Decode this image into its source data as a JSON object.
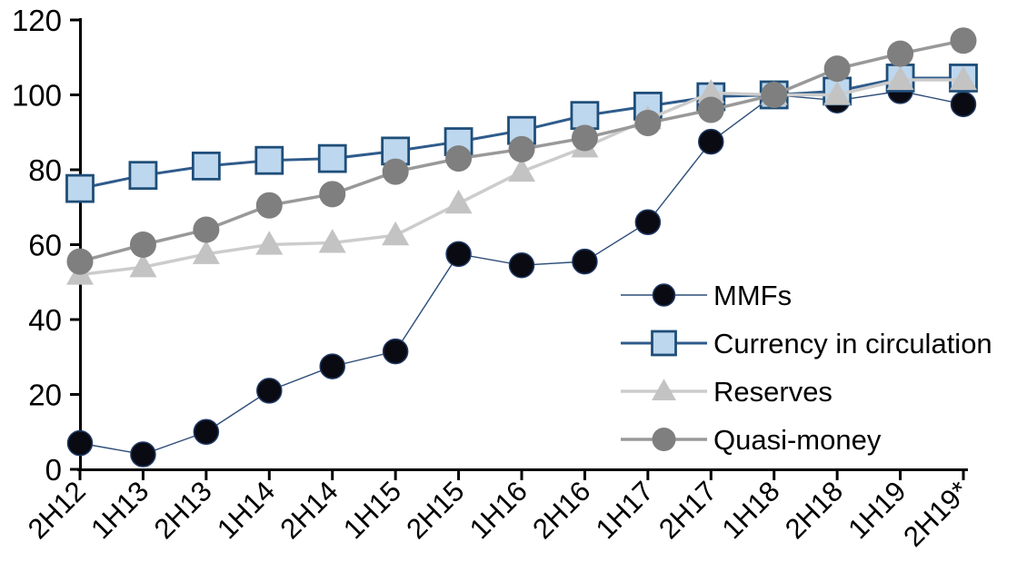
{
  "chart_data": {
    "type": "line",
    "title": "",
    "xlabel": "",
    "ylabel": "",
    "categories": [
      "2H12",
      "1H13",
      "2H13",
      "1H14",
      "2H14",
      "1H15",
      "2H15",
      "1H16",
      "2H16",
      "1H17",
      "2H17",
      "1H18",
      "2H18",
      "1H19",
      "2H19*"
    ],
    "series": [
      {
        "name": "MMFs",
        "marker": "circle",
        "marker_size": 27,
        "marker_color": "#0a0a12",
        "marker_edge": "#1f3864",
        "marker_edge_width": 1.5,
        "line_color": "#2e4e79",
        "line_width": 1.4,
        "values": [
          7,
          4,
          10,
          21,
          27.5,
          31.5,
          57.5,
          54.5,
          55.5,
          66,
          87.5,
          100,
          98.5,
          101,
          97.5
        ]
      },
      {
        "name": "Currency in circulation",
        "marker": "square",
        "marker_size": 29,
        "marker_color": "#bdd7ee",
        "marker_edge": "#1f4e79",
        "marker_edge_width": 2.8,
        "line_color": "#2f5b8b",
        "line_width": 3,
        "values": [
          75,
          78.5,
          81,
          82.5,
          83,
          85,
          87.5,
          90.5,
          94.5,
          97,
          99.5,
          100,
          101,
          104.5,
          104.5
        ]
      },
      {
        "name": "Reserves",
        "marker": "triangle",
        "marker_size": 30,
        "marker_color": "#c3c3c3",
        "marker_edge": "none",
        "marker_edge_width": 0,
        "line_color": "#cccccc",
        "line_width": 3.5,
        "values": [
          52,
          54,
          57.5,
          60,
          60.5,
          62.5,
          71,
          79.5,
          86,
          93.5,
          100.5,
          100,
          100,
          104,
          104
        ]
      },
      {
        "name": "Quasi-money",
        "marker": "circle",
        "marker_size": 29,
        "marker_color": "#7f7f7f",
        "marker_edge": "none",
        "marker_edge_width": 0,
        "line_color": "#999999",
        "line_width": 3.5,
        "values": [
          55.5,
          60,
          64,
          70.5,
          73.5,
          79.5,
          83,
          85.5,
          88.5,
          92.5,
          96,
          100,
          107,
          111,
          114.5
        ]
      }
    ],
    "ylim": [
      0,
      120
    ],
    "yticks": [
      0,
      20,
      40,
      60,
      80,
      100,
      120
    ],
    "grid": false,
    "legend_position": "inside-right",
    "legend_labels": [
      "MMFs",
      "Currency in circulation",
      "Reserves",
      "Quasi-money"
    ],
    "axis_color": "#000000"
  }
}
